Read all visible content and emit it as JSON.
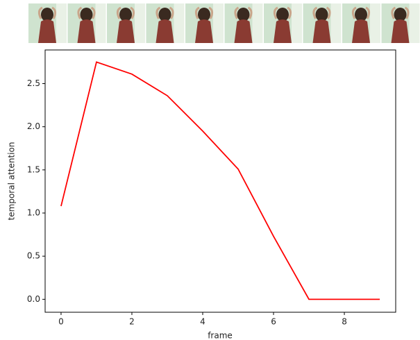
{
  "chart_data": {
    "type": "line",
    "xlabel": "frame",
    "ylabel": "temporal attention",
    "x": [
      0,
      1,
      2,
      3,
      4,
      5,
      6,
      7,
      8,
      9
    ],
    "series": [
      {
        "color": "#ff0000",
        "values": [
          1.08,
          2.75,
          2.61,
          2.36,
          1.95,
          1.51,
          0.73,
          0.0,
          0.0,
          0.0
        ]
      }
    ],
    "xlim": [
      -0.45,
      9.45
    ],
    "xticks": [
      0,
      2,
      4,
      6,
      8
    ],
    "ylim": [
      -0.15,
      2.89
    ],
    "yticks": [
      {
        "value": 0,
        "label": "0.0"
      },
      {
        "value": 0.5,
        "label": "0.5"
      },
      {
        "value": 1,
        "label": "1.0"
      },
      {
        "value": 1.5,
        "label": "1.5"
      },
      {
        "value": 2,
        "label": "2.0"
      },
      {
        "value": 2.5,
        "label": "2.5"
      }
    ],
    "grid": false
  }
}
